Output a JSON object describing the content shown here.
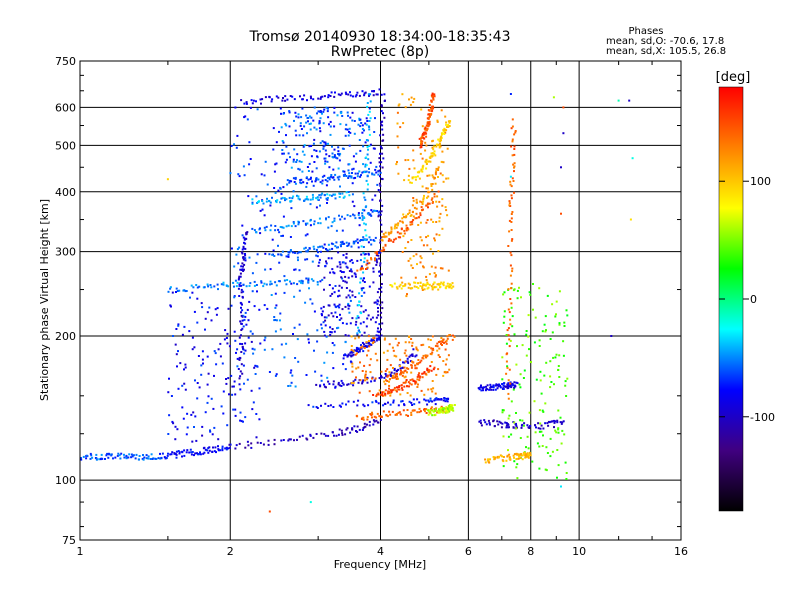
{
  "chart_data": {
    "type": "scatter",
    "title": "Tromsø 20140930 18:34:00-18:35:43",
    "subtitle": "RwPretec (8p)",
    "xlabel": "Frequency [MHz]",
    "ylabel": "Stationary phase Virtual Height [km]",
    "x_scale": "log",
    "y_scale": "log",
    "xlim": [
      1,
      16
    ],
    "ylim": [
      75,
      750
    ],
    "x_ticks": [
      1,
      2,
      4,
      6,
      8,
      10,
      16
    ],
    "x_tick_labels": [
      "1",
      "2",
      "4",
      "6",
      "8",
      "10",
      "16"
    ],
    "y_ticks": [
      75,
      100,
      200,
      300,
      400,
      500,
      600,
      750
    ],
    "y_tick_labels": [
      "75",
      "100",
      "200",
      "300",
      "400",
      "500",
      "600",
      "750"
    ],
    "grid": true,
    "phases": {
      "title": "Phases",
      "line1": "mean, sd,O: -70.6, 17.8",
      "line2": "mean, sd,X: 105.5, 26.8"
    },
    "colorbar": {
      "label": "[deg]",
      "range": [
        -180,
        180
      ],
      "ticks": [
        100,
        0,
        -100
      ],
      "tick_labels": [
        "100",
        "0",
        "-100"
      ],
      "colors": [
        "#ff0000",
        "#ff8000",
        "#ffff00",
        "#00ff00",
        "#00ffff",
        "#0000ff",
        "#400080",
        "#000000"
      ]
    },
    "series": [
      {
        "mode": "O",
        "traces": [
          {
            "f": [
              1.0,
              1.45
            ],
            "h": [
              112,
              112
            ],
            "phase": -60
          },
          {
            "f": [
              1.45,
              2.0
            ],
            "h": [
              112,
              117
            ],
            "phase": -80
          },
          {
            "f": [
              2.0,
              2.6,
              3.2,
              3.6,
              4.0
            ],
            "h": [
              117,
              121,
              125,
              128,
              133
            ],
            "phase": -105
          },
          {
            "f": [
              2.9,
              4.0,
              5.0,
              5.5
            ],
            "h": [
              143,
              145,
              146,
              147
            ],
            "phase": -75
          },
          {
            "f": [
              3.0,
              3.5,
              4.0,
              4.4,
              4.7
            ],
            "h": [
              158,
              160,
              163,
              172,
              185
            ],
            "phase": -95
          },
          {
            "f": [
              3.4,
              3.7,
              4.0
            ],
            "h": [
              180,
              190,
              200
            ],
            "phase": -85
          },
          {
            "f": [
              1.5,
              1.8,
              2.1,
              2.5,
              3.0
            ],
            "h": [
              250,
              253,
              256,
              258,
              260
            ],
            "phase": -50
          },
          {
            "f": [
              2.4,
              2.8,
              3.2,
              3.5,
              3.9
            ],
            "h": [
              295,
              300,
              308,
              312,
              318
            ],
            "phase": -60
          },
          {
            "f": [
              2.2,
              2.6,
              3.0,
              3.6,
              4.0
            ],
            "h": [
              330,
              340,
              348,
              355,
              362
            ],
            "phase": -55
          },
          {
            "f": [
              2.6,
              3.0,
              3.5,
              4.0
            ],
            "h": [
              420,
              425,
              432,
              440
            ],
            "phase": -65
          },
          {
            "f": [
              2.2,
              2.6,
              3.0,
              3.5
            ],
            "h": [
              380,
              385,
              390,
              395
            ],
            "phase": -45
          },
          {
            "f": [
              2.1,
              2.5,
              3.0,
              3.5,
              4.0
            ],
            "h": [
              615,
              625,
              632,
              640,
              645
            ],
            "phase": -90
          },
          {
            "f": [
              3.6,
              3.7,
              3.75,
              3.8
            ],
            "h": [
              200,
              300,
              450,
              640
            ],
            "phase": -40
          },
          {
            "f": [
              4.0,
              4.0,
              4.05
            ],
            "h": [
              200,
              400,
              640
            ],
            "phase": -100
          },
          {
            "f": [
              2.1,
              2.1,
              2.15
            ],
            "h": [
              160,
              260,
              330
            ],
            "phase": -95
          },
          {
            "f": [
              6.3,
              7.0,
              7.5,
              8.5,
              9.3
            ],
            "h": [
              132,
              131,
              130,
              130,
              132
            ],
            "phase": -100
          },
          {
            "f": [
              6.3,
              7.0,
              7.5
            ],
            "h": [
              155,
              157,
              158
            ],
            "phase": -85
          }
        ],
        "scatter_regions": [
          {
            "f": [
              1.5,
              2.3
            ],
            "h": [
              120,
              250
            ],
            "phase": -80
          },
          {
            "f": [
              2.0,
              3.5
            ],
            "h": [
              155,
              300
            ],
            "phase": -65
          },
          {
            "f": [
              2.0,
              4.0
            ],
            "h": [
              300,
              600
            ],
            "phase": -70
          },
          {
            "f": [
              2.5,
              3.8
            ],
            "h": [
              440,
              600
            ],
            "phase": -60
          },
          {
            "f": [
              3.0,
              4.0
            ],
            "h": [
              200,
              300
            ],
            "phase": -90
          }
        ]
      },
      {
        "mode": "X",
        "traces": [
          {
            "f": [
              3.6,
              4.0,
              4.4,
              4.8,
              5.2
            ],
            "h": [
              270,
              300,
              330,
              360,
              395
            ],
            "phase": 145
          },
          {
            "f": [
              4.0,
              4.3,
              4.6,
              5.0,
              5.3
            ],
            "h": [
              320,
              340,
              365,
              400,
              460
            ],
            "phase": 115
          },
          {
            "f": [
              4.6,
              4.9,
              5.1,
              5.3,
              5.5
            ],
            "h": [
              420,
              450,
              480,
              520,
              560
            ],
            "phase": 95
          },
          {
            "f": [
              4.8,
              5.0,
              5.1
            ],
            "h": [
              500,
              560,
              640
            ],
            "phase": 150
          },
          {
            "f": [
              4.1,
              4.4,
              4.8,
              5.2,
              5.6
            ],
            "h": [
              162,
              168,
              178,
              192,
              200
            ],
            "phase": 140
          },
          {
            "f": [
              3.9,
              4.3,
              4.7,
              5.1
            ],
            "h": [
              150,
              155,
              162,
              172
            ],
            "phase": 155
          },
          {
            "f": [
              4.2,
              4.8,
              5.2,
              5.6
            ],
            "h": [
              255,
              255,
              255,
              255
            ],
            "phase": 95
          },
          {
            "f": [
              3.6,
              4.0,
              4.5,
              5.0,
              5.5
            ],
            "h": [
              135,
              137,
              138,
              140,
              141
            ],
            "phase": 140
          },
          {
            "f": [
              5.0,
              5.4,
              5.6
            ],
            "h": [
              138,
              140,
              142
            ],
            "phase": 60
          },
          {
            "f": [
              7.2,
              7.3,
              7.4
            ],
            "h": [
              150,
              340,
              560
            ],
            "phase": 140
          },
          {
            "f": [
              6.5,
              7.5,
              8.0
            ],
            "h": [
              110,
              112,
              113
            ],
            "phase": 110
          }
        ],
        "scatter_regions": [
          {
            "f": [
              4.3,
              5.5
            ],
            "h": [
              240,
              640
            ],
            "phase": 120
          },
          {
            "f": [
              3.5,
              5.5
            ],
            "h": [
              150,
              200
            ],
            "phase": 130
          },
          {
            "f": [
              7.0,
              9.5
            ],
            "h": [
              100,
              260
            ],
            "phase": 40
          }
        ]
      }
    ],
    "isolated_points": [
      {
        "f": 1.5,
        "h": 425,
        "phase": 95
      },
      {
        "f": 2.4,
        "h": 86,
        "phase": 150
      },
      {
        "f": 2.9,
        "h": 90,
        "phase": -20
      },
      {
        "f": 7.3,
        "h": 640,
        "phase": -70
      },
      {
        "f": 8.9,
        "h": 630,
        "phase": 60
      },
      {
        "f": 9.3,
        "h": 600,
        "phase": 150
      },
      {
        "f": 9.3,
        "h": 530,
        "phase": -100
      },
      {
        "f": 9.2,
        "h": 450,
        "phase": -100
      },
      {
        "f": 12.0,
        "h": 620,
        "phase": -10
      },
      {
        "f": 12.6,
        "h": 620,
        "phase": -100
      },
      {
        "f": 12.8,
        "h": 470,
        "phase": -20
      },
      {
        "f": 12.7,
        "h": 350,
        "phase": 90
      },
      {
        "f": 11.6,
        "h": 200,
        "phase": -100
      },
      {
        "f": 9.2,
        "h": 97,
        "phase": -30
      },
      {
        "f": 9.2,
        "h": 360,
        "phase": 150
      },
      {
        "f": 7.3,
        "h": 430,
        "phase": -30
      }
    ]
  }
}
